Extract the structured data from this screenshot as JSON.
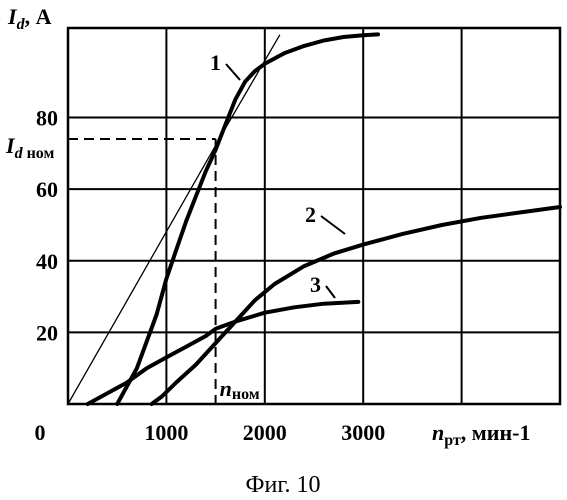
{
  "chart_data": {
    "type": "line",
    "title": "",
    "caption": "Фиг. 10",
    "xlabel": {
      "main": "n",
      "sub": "рт",
      "rest": ", мин-1"
    },
    "ylabel": {
      "main": "I",
      "sub": "d",
      "rest": ", А"
    },
    "x_ticks": [
      "0",
      "1000",
      "2000",
      "3000"
    ],
    "y_ticks": [
      "80",
      "60",
      "40",
      "20"
    ],
    "xlim": [
      0,
      5000
    ],
    "ylim": [
      0,
      105
    ],
    "grid": true,
    "reference": {
      "I_d_nom": {
        "main": "I",
        "sub": "d",
        "rest": " ном",
        "value": 74
      },
      "n_nom": {
        "main": "n",
        "rest": "ном",
        "value": 1500
      }
    },
    "series": [
      {
        "label": "1",
        "points": [
          [
            500,
            0
          ],
          [
            700,
            10
          ],
          [
            900,
            25
          ],
          [
            1000,
            35
          ],
          [
            1100,
            43
          ],
          [
            1200,
            51
          ],
          [
            1300,
            58
          ],
          [
            1400,
            65
          ],
          [
            1500,
            71
          ],
          [
            1600,
            78
          ],
          [
            1700,
            85
          ],
          [
            1800,
            90
          ],
          [
            1900,
            93
          ],
          [
            2000,
            95
          ],
          [
            2200,
            98
          ],
          [
            2400,
            100
          ],
          [
            2600,
            101.5
          ],
          [
            2800,
            102.5
          ],
          [
            3000,
            103
          ],
          [
            3150,
            103.2
          ]
        ]
      },
      {
        "label": "",
        "points": [
          [
            0,
            0
          ],
          [
            1600,
            77
          ],
          [
            2150,
            103
          ]
        ]
      },
      {
        "label": "2",
        "points": [
          [
            850,
            0
          ],
          [
            950,
            2
          ],
          [
            1100,
            6
          ],
          [
            1300,
            11
          ],
          [
            1500,
            17
          ],
          [
            1700,
            23
          ],
          [
            1900,
            29
          ],
          [
            2100,
            33.5
          ],
          [
            2400,
            38.5
          ],
          [
            2700,
            42
          ],
          [
            3000,
            44.5
          ],
          [
            3400,
            47.5
          ],
          [
            3800,
            50
          ],
          [
            4200,
            52
          ],
          [
            4600,
            53.5
          ],
          [
            5000,
            55
          ]
        ]
      },
      {
        "label": "3",
        "points": [
          [
            200,
            0
          ],
          [
            400,
            3
          ],
          [
            600,
            6
          ],
          [
            800,
            10
          ],
          [
            1000,
            13
          ],
          [
            1200,
            16
          ],
          [
            1400,
            19
          ],
          [
            1500,
            21
          ],
          [
            1700,
            23
          ],
          [
            2000,
            25.5
          ],
          [
            2300,
            27
          ],
          [
            2600,
            28
          ],
          [
            2950,
            28.5
          ]
        ]
      }
    ]
  }
}
